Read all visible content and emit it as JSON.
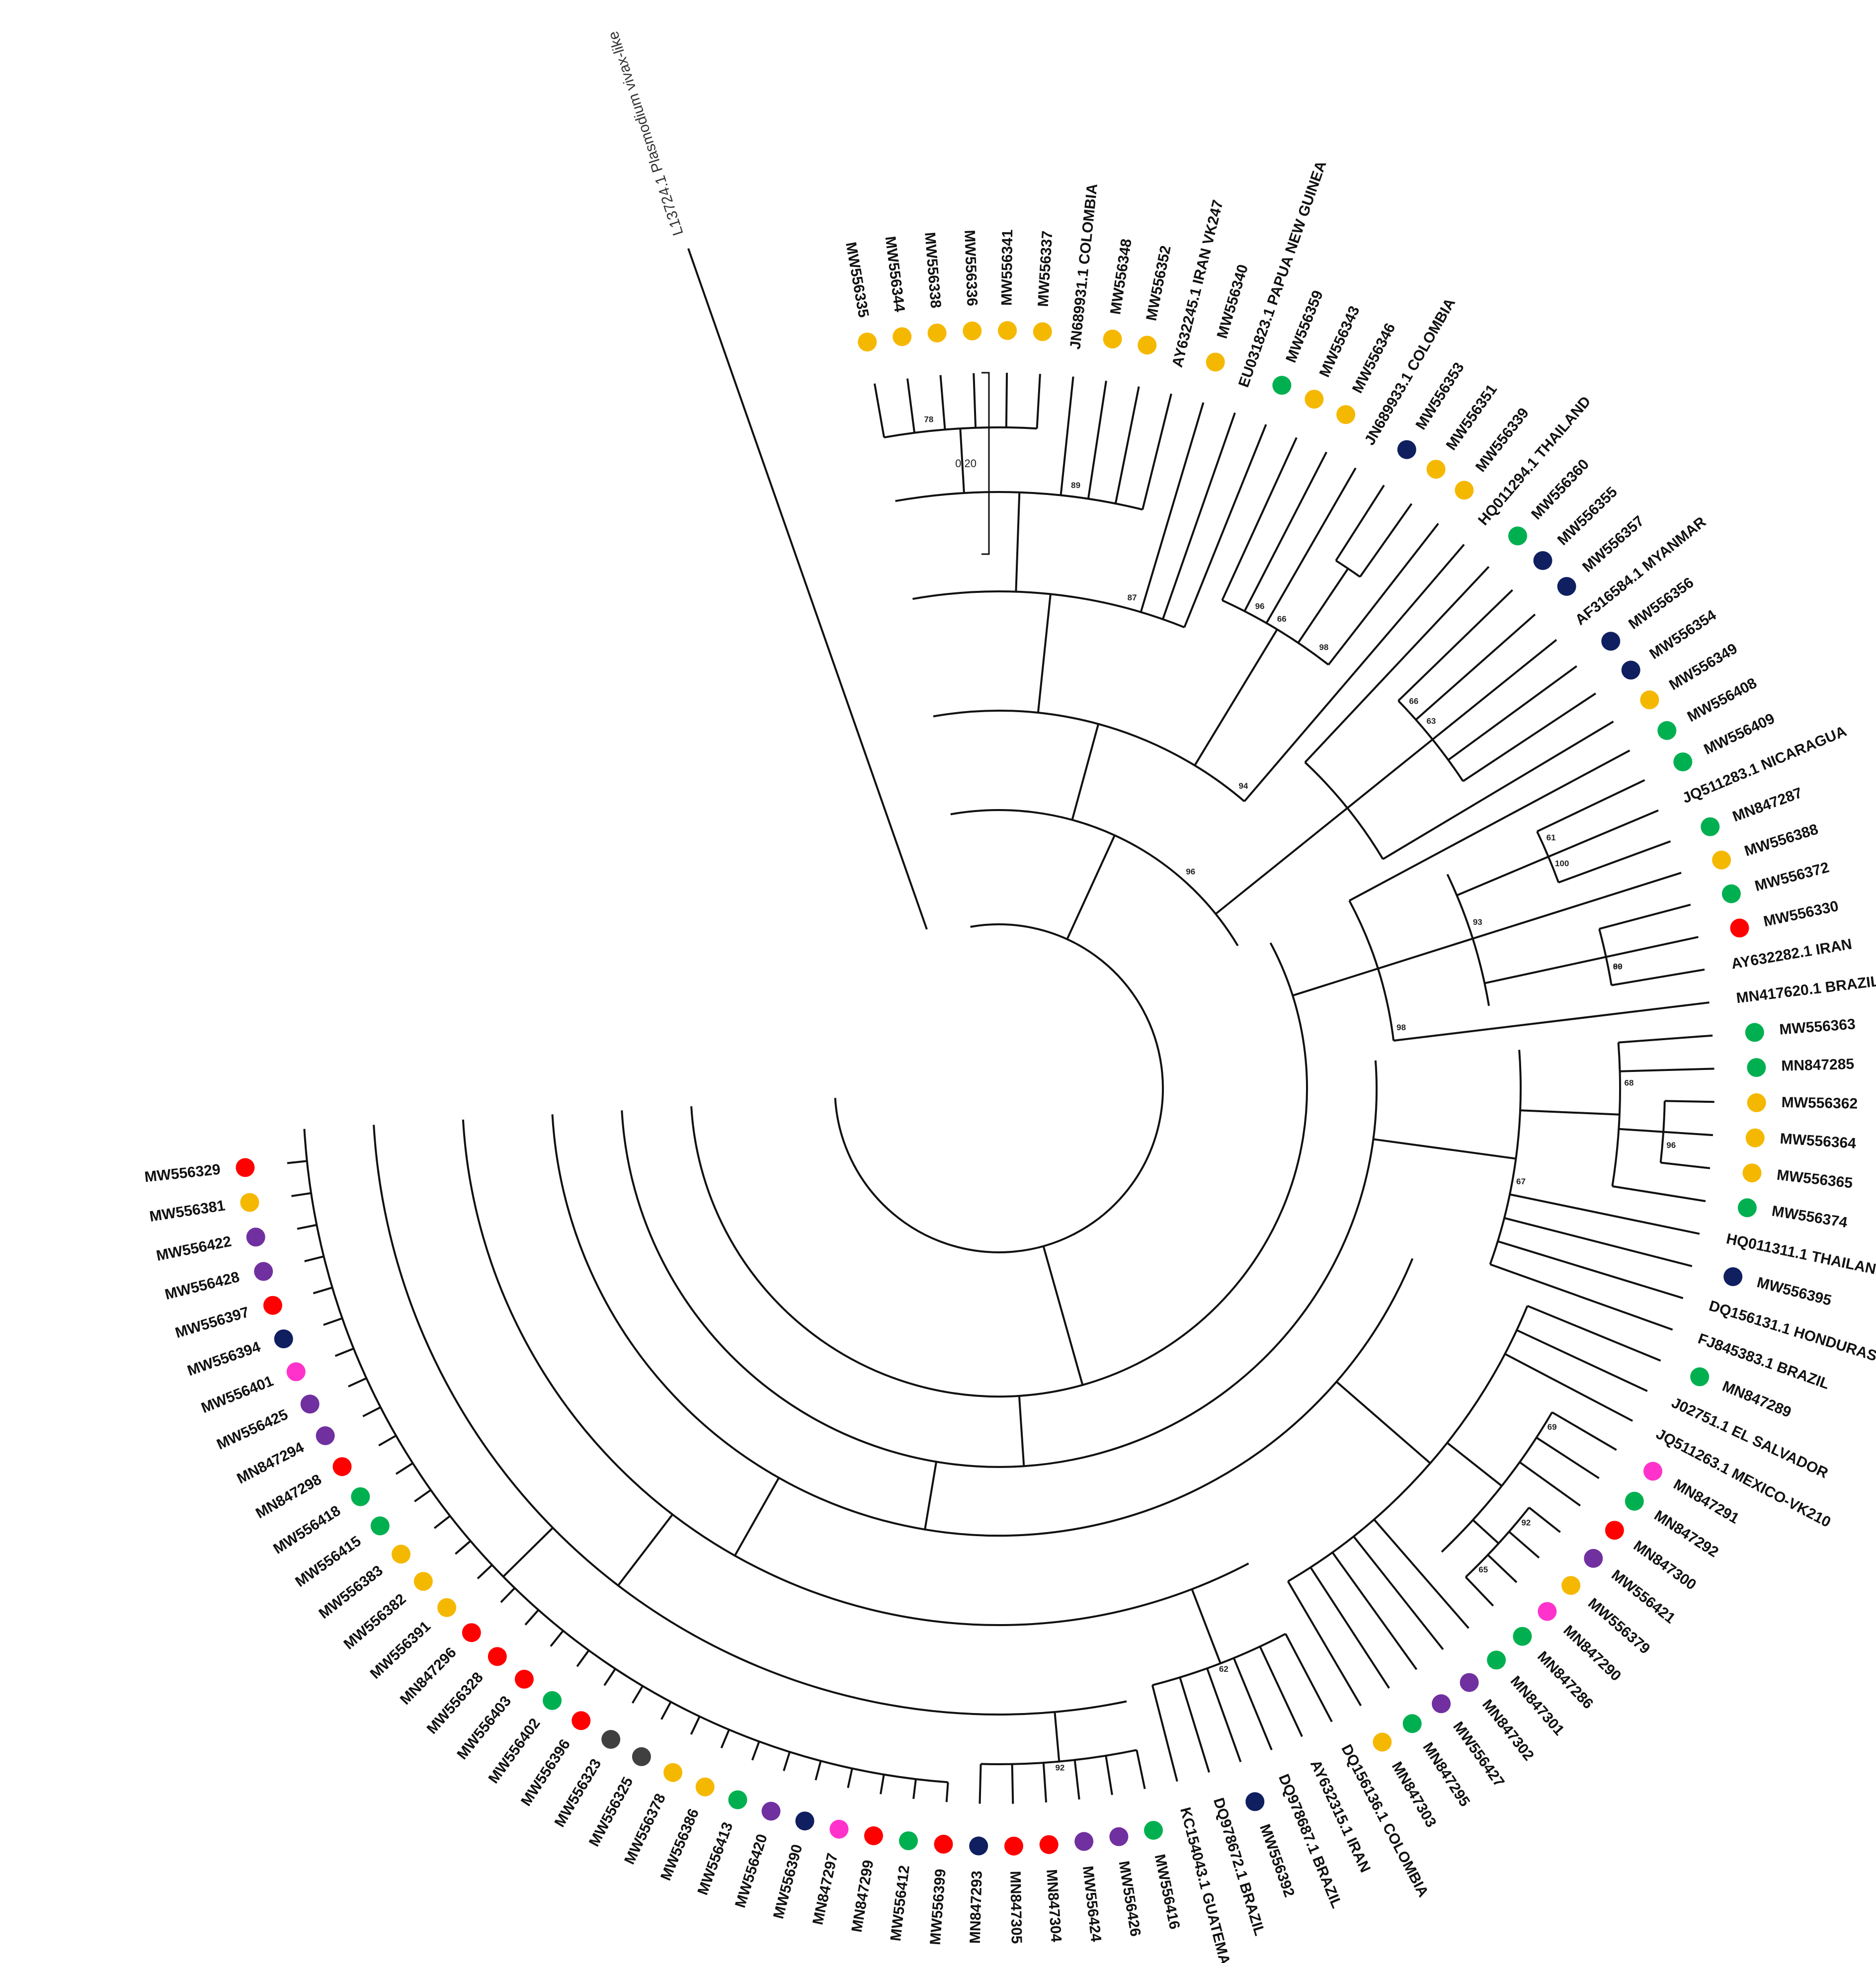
{
  "scale_bar": {
    "label": "0.20"
  },
  "colors": {
    "yellow": "#f5b800",
    "red": "#ff0000",
    "purple": "#7030a0",
    "navy": "#0f1f5f",
    "green": "#00b050",
    "pink": "#ff33cc",
    "gray": "#404040"
  },
  "outgroup": {
    "label": "L13724.1 Plasmodium vivax-like"
  },
  "leaves": [
    {
      "label": "MW556335",
      "color": "yellow"
    },
    {
      "label": "MW556344",
      "color": "yellow"
    },
    {
      "label": "MW556338",
      "color": "yellow"
    },
    {
      "label": "MW556336",
      "color": "yellow"
    },
    {
      "label": "MW556341",
      "color": "yellow"
    },
    {
      "label": "MW556337",
      "color": "yellow"
    },
    {
      "label": "JN689931.1 COLOMBIA",
      "color": null
    },
    {
      "label": "MW556348",
      "color": "yellow"
    },
    {
      "label": "MW556352",
      "color": "yellow"
    },
    {
      "label": "AY632245.1 IRAN VK247",
      "color": null
    },
    {
      "label": "MW556340",
      "color": "yellow"
    },
    {
      "label": "EU031823.1 PAPUA NEW GUINEA",
      "color": null
    },
    {
      "label": "MW556359",
      "color": "green"
    },
    {
      "label": "MW556343",
      "color": "yellow"
    },
    {
      "label": "MW556346",
      "color": "yellow"
    },
    {
      "label": "JN689933.1 COLOMBIA",
      "color": null
    },
    {
      "label": "MW556353",
      "color": "navy"
    },
    {
      "label": "MW556351",
      "color": "yellow"
    },
    {
      "label": "MW556339",
      "color": "yellow"
    },
    {
      "label": "HQ011294.1 THAILAND",
      "color": null
    },
    {
      "label": "MW556360",
      "color": "green"
    },
    {
      "label": "MW556355",
      "color": "navy"
    },
    {
      "label": "MW556357",
      "color": "navy"
    },
    {
      "label": "AF316584.1 MYANMAR",
      "color": null
    },
    {
      "label": "MW556356",
      "color": "navy"
    },
    {
      "label": "MW556354",
      "color": "navy"
    },
    {
      "label": "MW556349",
      "color": "yellow"
    },
    {
      "label": "MW556408",
      "color": "green"
    },
    {
      "label": "MW556409",
      "color": "green"
    },
    {
      "label": "JQ511283.1 NICARAGUA",
      "color": null
    },
    {
      "label": "MN847287",
      "color": "green"
    },
    {
      "label": "MW556388",
      "color": "yellow"
    },
    {
      "label": "MW556372",
      "color": "green"
    },
    {
      "label": "MW556330",
      "color": "red"
    },
    {
      "label": "AY632282.1 IRAN",
      "color": null
    },
    {
      "label": "MN417620.1 BRAZIL",
      "color": null
    },
    {
      "label": "MW556363",
      "color": "green"
    },
    {
      "label": "MN847285",
      "color": "green"
    },
    {
      "label": "MW556362",
      "color": "yellow"
    },
    {
      "label": "MW556364",
      "color": "yellow"
    },
    {
      "label": "MW556365",
      "color": "yellow"
    },
    {
      "label": "MW556374",
      "color": "green"
    },
    {
      "label": "HQ011311.1 THAILAND",
      "color": null
    },
    {
      "label": "MW556395",
      "color": "navy"
    },
    {
      "label": "DQ156131.1 HONDURAS",
      "color": null
    },
    {
      "label": "FJ845383.1 BRAZIL",
      "color": null
    },
    {
      "label": "MN847289",
      "color": "green"
    },
    {
      "label": "J02751.1 EL SALVADOR",
      "color": null
    },
    {
      "label": "JQ511263.1 MEXICO-VK210",
      "color": null
    },
    {
      "label": "MN847291",
      "color": "pink"
    },
    {
      "label": "MN847292",
      "color": "green"
    },
    {
      "label": "MN847300",
      "color": "red"
    },
    {
      "label": "MW556421",
      "color": "purple"
    },
    {
      "label": "MW556379",
      "color": "yellow"
    },
    {
      "label": "MN847290",
      "color": "pink"
    },
    {
      "label": "MN847286",
      "color": "green"
    },
    {
      "label": "MN847301",
      "color": "green"
    },
    {
      "label": "MN847302",
      "color": "purple"
    },
    {
      "label": "MW556427",
      "color": "purple"
    },
    {
      "label": "MN847295",
      "color": "green"
    },
    {
      "label": "MN847303",
      "color": "yellow"
    },
    {
      "label": "DQ156136.1 COLOMBIA",
      "color": null
    },
    {
      "label": "AY632315.1 IRAN",
      "color": null
    },
    {
      "label": "DQ978687.1 BRAZIL",
      "color": null
    },
    {
      "label": "MW556392",
      "color": "navy"
    },
    {
      "label": "DQ978672.1 BRAZIL",
      "color": null
    },
    {
      "label": "KC154043.1 GUATEMALA",
      "color": null
    },
    {
      "label": "MW556416",
      "color": "green"
    },
    {
      "label": "MW556426",
      "color": "purple"
    },
    {
      "label": "MW556424",
      "color": "purple"
    },
    {
      "label": "MN847304",
      "color": "red"
    },
    {
      "label": "MN847305",
      "color": "red"
    },
    {
      "label": "MN847293",
      "color": "navy"
    },
    {
      "label": "MW556399",
      "color": "red"
    },
    {
      "label": "MW556412",
      "color": "green"
    },
    {
      "label": "MN847299",
      "color": "red"
    },
    {
      "label": "MN847297",
      "color": "pink"
    },
    {
      "label": "MW556390",
      "color": "navy"
    },
    {
      "label": "MW556420",
      "color": "purple"
    },
    {
      "label": "MW556413",
      "color": "green"
    },
    {
      "label": "MW556386",
      "color": "yellow"
    },
    {
      "label": "MW556378",
      "color": "yellow"
    },
    {
      "label": "MW556325",
      "color": "gray"
    },
    {
      "label": "MW556323",
      "color": "gray"
    },
    {
      "label": "MW556396",
      "color": "red"
    },
    {
      "label": "MW556402",
      "color": "green"
    },
    {
      "label": "MW556403",
      "color": "red"
    },
    {
      "label": "MW556328",
      "color": "red"
    },
    {
      "label": "MN847296",
      "color": "red"
    },
    {
      "label": "MW556391",
      "color": "yellow"
    },
    {
      "label": "MW556382",
      "color": "yellow"
    },
    {
      "label": "MW556383",
      "color": "yellow"
    },
    {
      "label": "MW556415",
      "color": "green"
    },
    {
      "label": "MW556418",
      "color": "green"
    },
    {
      "label": "MN847298",
      "color": "red"
    },
    {
      "label": "MN847294",
      "color": "purple"
    },
    {
      "label": "MW556425",
      "color": "purple"
    },
    {
      "label": "MW556401",
      "color": "pink"
    },
    {
      "label": "MW556394",
      "color": "navy"
    },
    {
      "label": "MW556397",
      "color": "red"
    },
    {
      "label": "MW556428",
      "color": "purple"
    },
    {
      "label": "MW556422",
      "color": "purple"
    },
    {
      "label": "MW556381",
      "color": "yellow"
    },
    {
      "label": "MW556329",
      "color": "red"
    }
  ],
  "bootstrap": [
    {
      "value": "78",
      "between": [
        1,
        2
      ]
    },
    {
      "value": "89",
      "between": [
        6,
        7
      ]
    },
    {
      "value": "87",
      "between": [
        9,
        10
      ]
    },
    {
      "value": "96",
      "between": [
        14,
        15
      ]
    },
    {
      "value": "66",
      "between": [
        15,
        16
      ]
    },
    {
      "value": "98",
      "between": [
        17,
        18
      ]
    },
    {
      "value": "94",
      "between": [
        18,
        19
      ]
    },
    {
      "value": "96",
      "between": [
        19,
        20
      ]
    },
    {
      "value": "63",
      "between": [
        22,
        23
      ]
    },
    {
      "value": "66",
      "between": [
        21,
        22
      ]
    },
    {
      "value": "61",
      "between": [
        28,
        29
      ]
    },
    {
      "value": "100",
      "between": [
        29,
        30
      ]
    },
    {
      "value": "93",
      "between": [
        30,
        31
      ]
    },
    {
      "value": "60",
      "between": [
        33,
        34
      ]
    },
    {
      "value": "99",
      "between": [
        33,
        34
      ]
    },
    {
      "value": "98",
      "between": [
        34,
        35
      ]
    },
    {
      "value": "68",
      "between": [
        37,
        38
      ]
    },
    {
      "value": "96",
      "between": [
        39,
        40
      ]
    },
    {
      "value": "67",
      "between": [
        41,
        42
      ]
    },
    {
      "value": "69",
      "between": [
        49,
        50
      ]
    },
    {
      "value": "92",
      "between": [
        52,
        53
      ]
    },
    {
      "value": "65",
      "between": [
        54,
        55
      ]
    },
    {
      "value": "62",
      "between": [
        63,
        64
      ]
    },
    {
      "value": "92",
      "between": [
        69,
        70
      ]
    }
  ]
}
